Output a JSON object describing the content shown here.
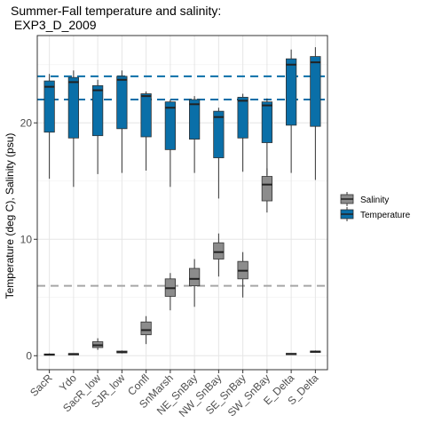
{
  "chart_data": {
    "type": "box",
    "title": "Summer-Fall temperature and salinity:",
    "subtitle": " EXP3_D_2009",
    "xlabel": "",
    "ylabel": "Temperature (deg C), Salinity (psu)",
    "ylim": [
      -1.2,
      27.5
    ],
    "yticks": [
      0,
      10,
      20
    ],
    "grid": true,
    "legend_position": "right",
    "categories": [
      "SacR",
      "Ydo",
      "SacR_low",
      "SJR_low",
      "Confl",
      "SnMarsh",
      "NE_SnBay",
      "NW_SnBay",
      "SE_SnBay",
      "SW_SnBay",
      "E_Delta",
      "S_Delta"
    ],
    "series": [
      {
        "name": "Salinity",
        "color": "#8c8c8c",
        "boxes": [
          {
            "min": 0.05,
            "q1": 0.05,
            "median": 0.1,
            "q3": 0.15,
            "max": 0.2
          },
          {
            "min": 0.1,
            "q1": 0.12,
            "median": 0.15,
            "q3": 0.18,
            "max": 0.2
          },
          {
            "min": 0.5,
            "q1": 0.7,
            "median": 0.9,
            "q3": 1.2,
            "max": 1.5
          },
          {
            "min": 0.2,
            "q1": 0.25,
            "median": 0.3,
            "q3": 0.4,
            "max": 0.45
          },
          {
            "min": 1.0,
            "q1": 1.8,
            "median": 2.2,
            "q3": 2.9,
            "max": 3.4
          },
          {
            "min": 3.9,
            "q1": 5.1,
            "median": 5.8,
            "q3": 6.6,
            "max": 7.1
          },
          {
            "min": 4.2,
            "q1": 6.0,
            "median": 6.6,
            "q3": 7.5,
            "max": 8.3
          },
          {
            "min": 6.8,
            "q1": 8.3,
            "median": 8.9,
            "q3": 9.7,
            "max": 10.5
          },
          {
            "min": 5.0,
            "q1": 6.6,
            "median": 7.3,
            "q3": 8.1,
            "max": 8.9
          },
          {
            "min": 12.3,
            "q1": 13.3,
            "median": 14.7,
            "q3": 15.4,
            "max": 16.1
          },
          {
            "min": 0.1,
            "q1": 0.1,
            "median": 0.15,
            "q3": 0.2,
            "max": 0.2
          },
          {
            "min": 0.25,
            "q1": 0.28,
            "median": 0.35,
            "q3": 0.4,
            "max": 0.45
          }
        ]
      },
      {
        "name": "Temperature",
        "color": "#0a6fa8",
        "boxes": [
          {
            "min": 15.2,
            "q1": 19.2,
            "median": 23.1,
            "q3": 23.6,
            "max": 24.2
          },
          {
            "min": 14.5,
            "q1": 18.7,
            "median": 23.5,
            "q3": 23.9,
            "max": 24.5
          },
          {
            "min": 15.6,
            "q1": 18.9,
            "median": 22.8,
            "q3": 23.2,
            "max": 23.7
          },
          {
            "min": 15.7,
            "q1": 19.5,
            "median": 23.7,
            "q3": 24.0,
            "max": 24.5
          },
          {
            "min": 15.9,
            "q1": 18.8,
            "median": 22.3,
            "q3": 22.5,
            "max": 22.7
          },
          {
            "min": 14.5,
            "q1": 17.7,
            "median": 21.3,
            "q3": 21.8,
            "max": 22.0
          },
          {
            "min": 15.7,
            "q1": 18.6,
            "median": 21.6,
            "q3": 22.0,
            "max": 22.3
          },
          {
            "min": 13.5,
            "q1": 17.0,
            "median": 20.5,
            "q3": 21.0,
            "max": 21.3
          },
          {
            "min": 15.8,
            "q1": 18.7,
            "median": 21.9,
            "q3": 22.2,
            "max": 22.5
          },
          {
            "min": 15.5,
            "q1": 18.3,
            "median": 21.5,
            "q3": 21.8,
            "max": 22.1
          },
          {
            "min": 15.7,
            "q1": 19.8,
            "median": 25.0,
            "q3": 25.5,
            "max": 26.3
          },
          {
            "min": 15.1,
            "q1": 19.7,
            "median": 25.2,
            "q3": 25.7,
            "max": 26.5
          }
        ]
      }
    ],
    "reference_lines": [
      {
        "value": 24.0,
        "color": "#0a6fa8"
      },
      {
        "value": 22.0,
        "color": "#0a6fa8"
      },
      {
        "value": 6.0,
        "color": "#a6a6a6"
      }
    ]
  }
}
